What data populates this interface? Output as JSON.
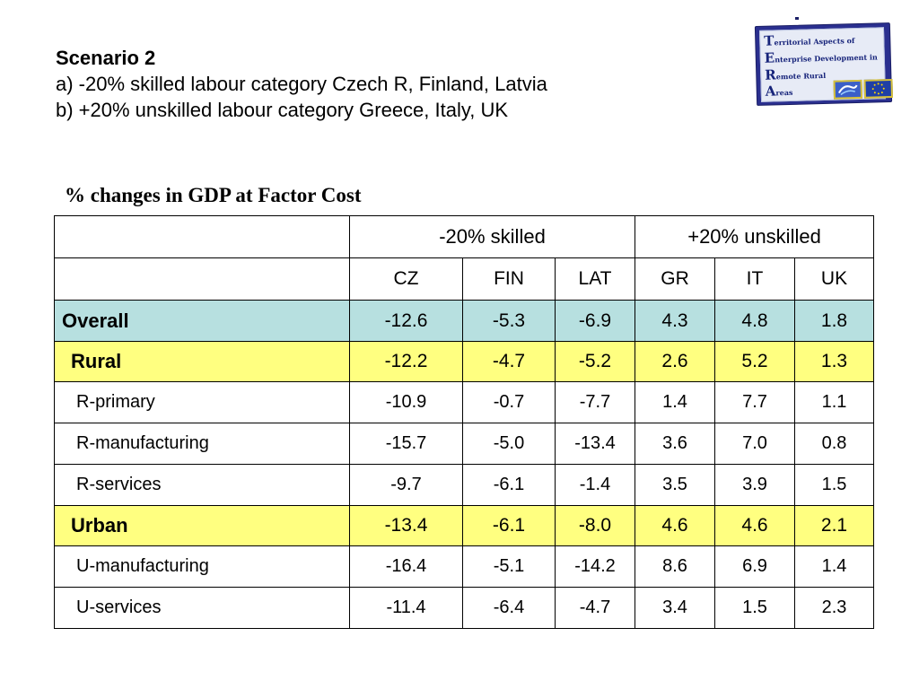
{
  "heading": {
    "title": "Scenario 2",
    "line_a": "a) -20% skilled labour category  Czech R, Finland,  Latvia",
    "line_b": "b) +20% unskilled labour category Greece, Italy, UK"
  },
  "logo": {
    "lines": [
      {
        "cap": "T",
        "rest": "erritorial Aspects of"
      },
      {
        "cap": "E",
        "rest": "nterprise Development in"
      },
      {
        "cap": "R",
        "rest": "emote Rural"
      },
      {
        "cap": "A",
        "rest": "reas"
      }
    ]
  },
  "caption": "% changes in GDP at Factor Cost",
  "table": {
    "group_headers": [
      "-20% skilled",
      "+20% unskilled"
    ],
    "columns": [
      "CZ",
      "FIN",
      "LAT",
      "GR",
      "IT",
      "UK"
    ],
    "rows": [
      {
        "label": "Overall",
        "values": [
          "-12.6",
          "-5.3",
          "-6.9",
          "4.3",
          "4.8",
          "1.8"
        ]
      },
      {
        "label": "Rural",
        "values": [
          "-12.2",
          "-4.7",
          "-5.2",
          "2.6",
          "5.2",
          "1.3"
        ]
      },
      {
        "label": "R-primary",
        "values": [
          "-10.9",
          "-0.7",
          "-7.7",
          "1.4",
          "7.7",
          "1.1"
        ]
      },
      {
        "label": "R-manufacturing",
        "values": [
          "-15.7",
          "-5.0",
          "-13.4",
          "3.6",
          "7.0",
          "0.8"
        ]
      },
      {
        "label": "R-services",
        "values": [
          "-9.7",
          "-6.1",
          "-1.4",
          "3.5",
          "3.9",
          "1.5"
        ]
      },
      {
        "label": "Urban",
        "values": [
          "-13.4",
          "-6.1",
          "-8.0",
          "4.6",
          "4.6",
          "2.1"
        ]
      },
      {
        "label": "U-manufacturing",
        "values": [
          "-16.4",
          "-5.1",
          "-14.2",
          "8.6",
          "6.9",
          "1.4"
        ]
      },
      {
        "label": "U-services",
        "values": [
          "-11.4",
          "-6.4",
          "-4.7",
          "3.4",
          "1.5",
          "2.3"
        ]
      }
    ]
  },
  "colors": {
    "overall_row": "#b7e0e0",
    "highlight_row": "#ffff80",
    "logo_blue": "#2a2f8f"
  }
}
